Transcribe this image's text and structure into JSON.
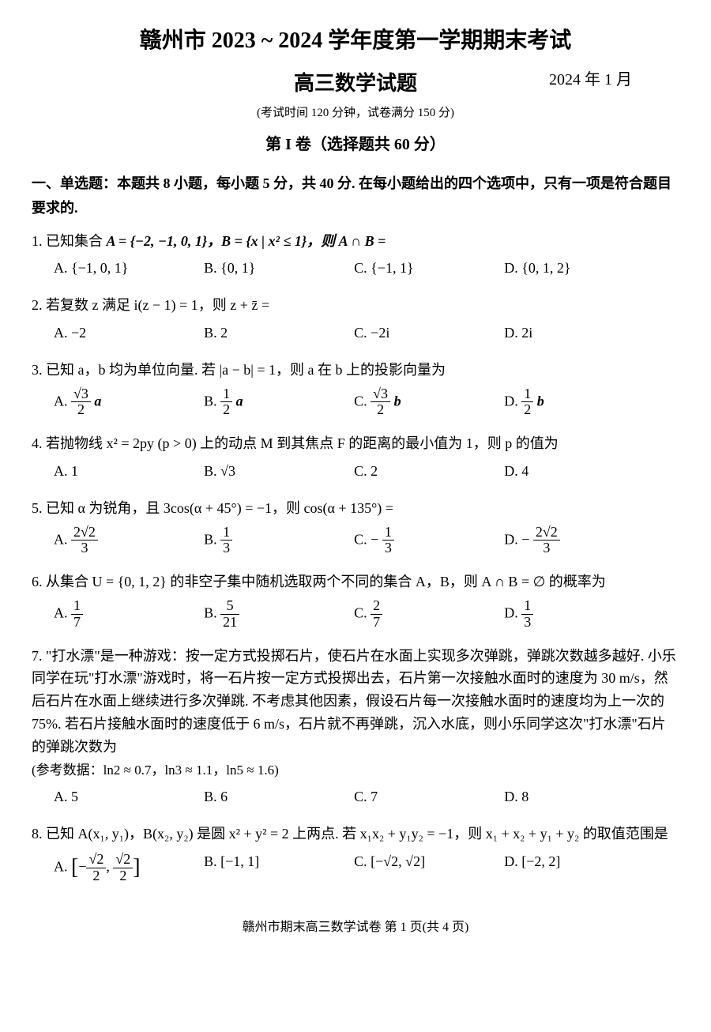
{
  "header": {
    "main_title": "赣州市 2023 ~ 2024 学年度第一学期期末考试",
    "sub_title": "高三数学试题",
    "date": "2024 年 1 月",
    "note": "(考试时间 120 分钟，试卷满分 150 分)",
    "section_title": "第 I 卷（选择题共 60 分）"
  },
  "instructions": "一、单选题：本题共 8 小题，每小题 5 分，共 40 分. 在每小题给出的四个选项中，只有一项是符合题目要求的.",
  "q1": {
    "stem_prefix": "1. 已知集合 ",
    "stem_mid": "A = {−2, −1, 0, 1}，B = {x | x² ≤ 1}，则 A ∩ B =",
    "options": {
      "A": "A.  {−1, 0, 1}",
      "B": "B.  {0, 1}",
      "C": "C.  {−1, 1}",
      "D": "D.  {0, 1, 2}"
    }
  },
  "q2": {
    "stem": "2. 若复数 z 满足 i(z − 1) = 1，则 z + z̄ =",
    "options": {
      "A": "A.  −2",
      "B": "B.  2",
      "C": "C.  −2i",
      "D": "D.  2i"
    }
  },
  "q3": {
    "stem": "3. 已知 a，b 均为单位向量. 若 |a − b| = 1，则 a 在 b 上的投影向量为",
    "optA_label": "A.",
    "optA_num": "√3",
    "optA_den": "2",
    "optA_suffix": "a",
    "optB_label": "B.",
    "optB_num": "1",
    "optB_den": "2",
    "optB_suffix": "a",
    "optC_label": "C.",
    "optC_num": "√3",
    "optC_den": "2",
    "optC_suffix": "b",
    "optD_label": "D.",
    "optD_num": "1",
    "optD_den": "2",
    "optD_suffix": "b"
  },
  "q4": {
    "stem": "4. 若抛物线 x² = 2py (p > 0) 上的动点 M 到其焦点 F 的距离的最小值为 1，则 p 的值为",
    "options": {
      "A": "A.  1",
      "B": "B.  √3",
      "C": "C.  2",
      "D": "D.  4"
    }
  },
  "q5": {
    "stem": "5. 已知 α 为锐角，且 3cos(α + 45°) = −1，则 cos(α + 135°) =",
    "optA_label": "A.",
    "optA_num": "2√2",
    "optA_den": "3",
    "optB_label": "B.",
    "optB_num": "1",
    "optB_den": "3",
    "optC_label": "C.  −",
    "optC_num": "1",
    "optC_den": "3",
    "optD_label": "D.  −",
    "optD_num": "2√2",
    "optD_den": "3"
  },
  "q6": {
    "stem": "6. 从集合 U = {0, 1, 2} 的非空子集中随机选取两个不同的集合 A，B，则 A ∩ B = ∅ 的概率为",
    "optA_label": "A.",
    "optA_num": "1",
    "optA_den": "7",
    "optB_label": "B.",
    "optB_num": "5",
    "optB_den": "21",
    "optC_label": "C.",
    "optC_num": "2",
    "optC_den": "7",
    "optD_label": "D.",
    "optD_num": "1",
    "optD_den": "3"
  },
  "q7": {
    "stem": "7. \"打水漂\"是一种游戏：按一定方式投掷石片，使石片在水面上实现多次弹跳，弹跳次数越多越好. 小乐同学在玩\"打水漂\"游戏时，将一石片按一定方式投掷出去，石片第一次接触水面时的速度为 30 m/s，然后石片在水面上继续进行多次弹跳. 不考虑其他因素，假设石片每一次接触水面时的速度均为上一次的 75%. 若石片接触水面时的速度低于 6 m/s，石片就不再弹跳，沉入水底，则小乐同学这次\"打水漂\"石片的弹跳次数为",
    "note": "(参考数据：ln2 ≈ 0.7，ln3 ≈ 1.1，ln5 ≈ 1.6)",
    "options": {
      "A": "A.  5",
      "B": "B.  6",
      "C": "C.  7",
      "D": "D.  8"
    }
  },
  "q8": {
    "stem": "8. 已知 A(x₁, y₁)，B(x₂, y₂) 是圆 x² + y² = 2 上两点. 若 x₁x₂ + y₁y₂ = −1，则 x₁ + x₂ + y₁ + y₂ 的取值范围是",
    "optA_prefix": "A.  ",
    "optA_l": "[",
    "optA_num1": "√2",
    "optA_den1": "2",
    "optA_sep": ", ",
    "optA_num2": "√2",
    "optA_den2": "2",
    "optA_r": "]",
    "optB": "B.  [−1, 1]",
    "optC": "C.  [−√2, √2]",
    "optD": "D.  [−2, 2]"
  },
  "footer": "赣州市期末高三数学试卷   第 1 页(共 4 页)"
}
